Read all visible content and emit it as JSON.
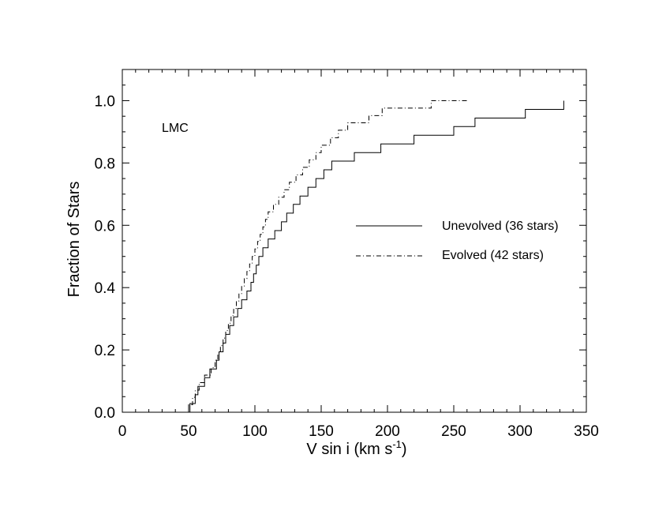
{
  "chart_data": {
    "type": "line",
    "xlabel_main": "V sin i (km s",
    "xlabel_sup": "-1",
    "xlabel_close": ")",
    "ylabel": "Fraction of Stars",
    "xlim": [
      0,
      350
    ],
    "ylim": [
      0.0,
      1.1
    ],
    "x_ticks": [
      "0",
      "50",
      "100",
      "150",
      "200",
      "250",
      "300",
      "350"
    ],
    "y_ticks": [
      "0.0",
      "0.2",
      "0.4",
      "0.6",
      "0.8",
      "1.0"
    ],
    "grid": false,
    "legend_position": "right",
    "annotation": "LMC",
    "series": [
      {
        "name": "Unevolved (36 stars)",
        "style": "solid",
        "step_x": [
          51,
          55,
          57,
          62,
          66,
          71,
          73,
          76,
          78,
          81,
          84,
          87,
          90,
          94,
          97,
          99,
          101,
          103,
          106,
          110,
          115,
          120,
          124,
          129,
          134,
          140,
          146,
          152,
          158,
          175,
          195,
          220,
          250,
          266,
          304,
          333
        ],
        "step_y": [
          0.028,
          0.056,
          0.083,
          0.111,
          0.139,
          0.167,
          0.194,
          0.222,
          0.25,
          0.278,
          0.306,
          0.333,
          0.361,
          0.389,
          0.417,
          0.444,
          0.472,
          0.5,
          0.528,
          0.556,
          0.583,
          0.611,
          0.639,
          0.667,
          0.694,
          0.722,
          0.75,
          0.778,
          0.806,
          0.833,
          0.861,
          0.889,
          0.917,
          0.944,
          0.972,
          1.0
        ]
      },
      {
        "name": "Evolved (42 stars)",
        "style": "dashdot",
        "step_x": [
          50,
          53,
          55,
          58,
          62,
          67,
          70,
          72,
          74,
          76,
          78,
          80,
          82,
          84,
          86,
          88,
          90,
          92,
          94,
          96,
          98,
          100,
          102,
          104,
          106,
          108,
          110,
          114,
          118,
          122,
          126,
          131,
          136,
          141,
          146,
          150,
          157,
          163,
          170,
          186,
          196,
          233
        ],
        "step_y": [
          0.024,
          0.048,
          0.071,
          0.095,
          0.119,
          0.143,
          0.167,
          0.19,
          0.214,
          0.238,
          0.262,
          0.286,
          0.31,
          0.333,
          0.357,
          0.381,
          0.405,
          0.429,
          0.452,
          0.476,
          0.5,
          0.524,
          0.548,
          0.571,
          0.595,
          0.619,
          0.643,
          0.667,
          0.69,
          0.714,
          0.738,
          0.762,
          0.786,
          0.81,
          0.833,
          0.857,
          0.881,
          0.905,
          0.929,
          0.952,
          0.976,
          1.0
        ],
        "end_x": 260
      }
    ]
  }
}
